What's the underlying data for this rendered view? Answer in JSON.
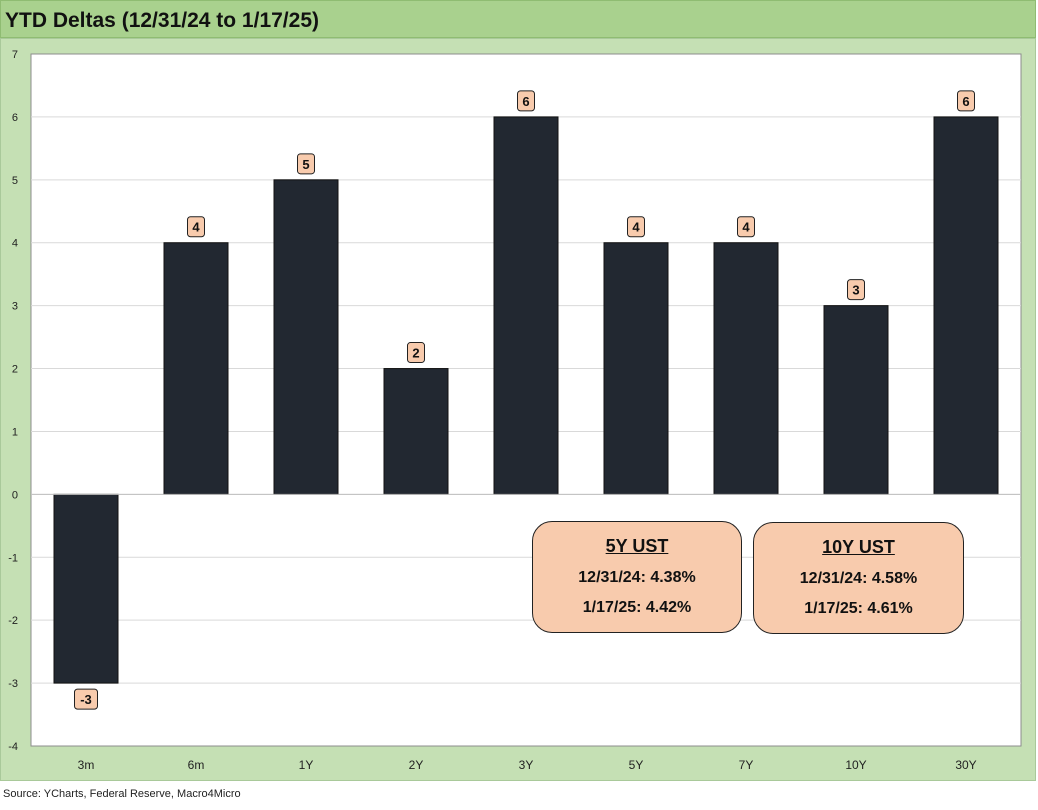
{
  "title": "YTD Deltas (12/31/24 to 1/17/25)",
  "source": "Source: YCharts, Federal Reserve, Macro4Micro",
  "colors": {
    "bar": "#222831",
    "plot_bg": "#ffffff",
    "frame_bg": "#c5e0b4",
    "title_bg": "#a9d18e",
    "label_bg": "#f8cbad",
    "gridline": "#d9d9d9"
  },
  "chart_data": {
    "type": "bar",
    "categories": [
      "3m",
      "6m",
      "1Y",
      "2Y",
      "3Y",
      "5Y",
      "7Y",
      "10Y",
      "30Y"
    ],
    "values": [
      -3,
      4,
      5,
      2,
      6,
      4,
      4,
      3,
      6
    ],
    "data_labels": [
      "-3",
      "4",
      "5",
      "2",
      "6",
      "4",
      "4",
      "3",
      "6"
    ],
    "title": "YTD Deltas (12/31/24 to 1/17/25)",
    "xlabel": "",
    "ylabel": "",
    "ylim": [
      -4,
      7
    ],
    "yticks": [
      -4,
      -3,
      -2,
      -1,
      0,
      1,
      2,
      3,
      4,
      5,
      6,
      7
    ],
    "grid": true,
    "legend": "none"
  },
  "info_boxes": [
    {
      "title": "5Y UST",
      "line1": "12/31/24: 4.38%",
      "line2": "1/17/25: 4.42%"
    },
    {
      "title": "10Y UST",
      "line1": "12/31/24: 4.58%",
      "line2": "1/17/25: 4.61%"
    }
  ]
}
